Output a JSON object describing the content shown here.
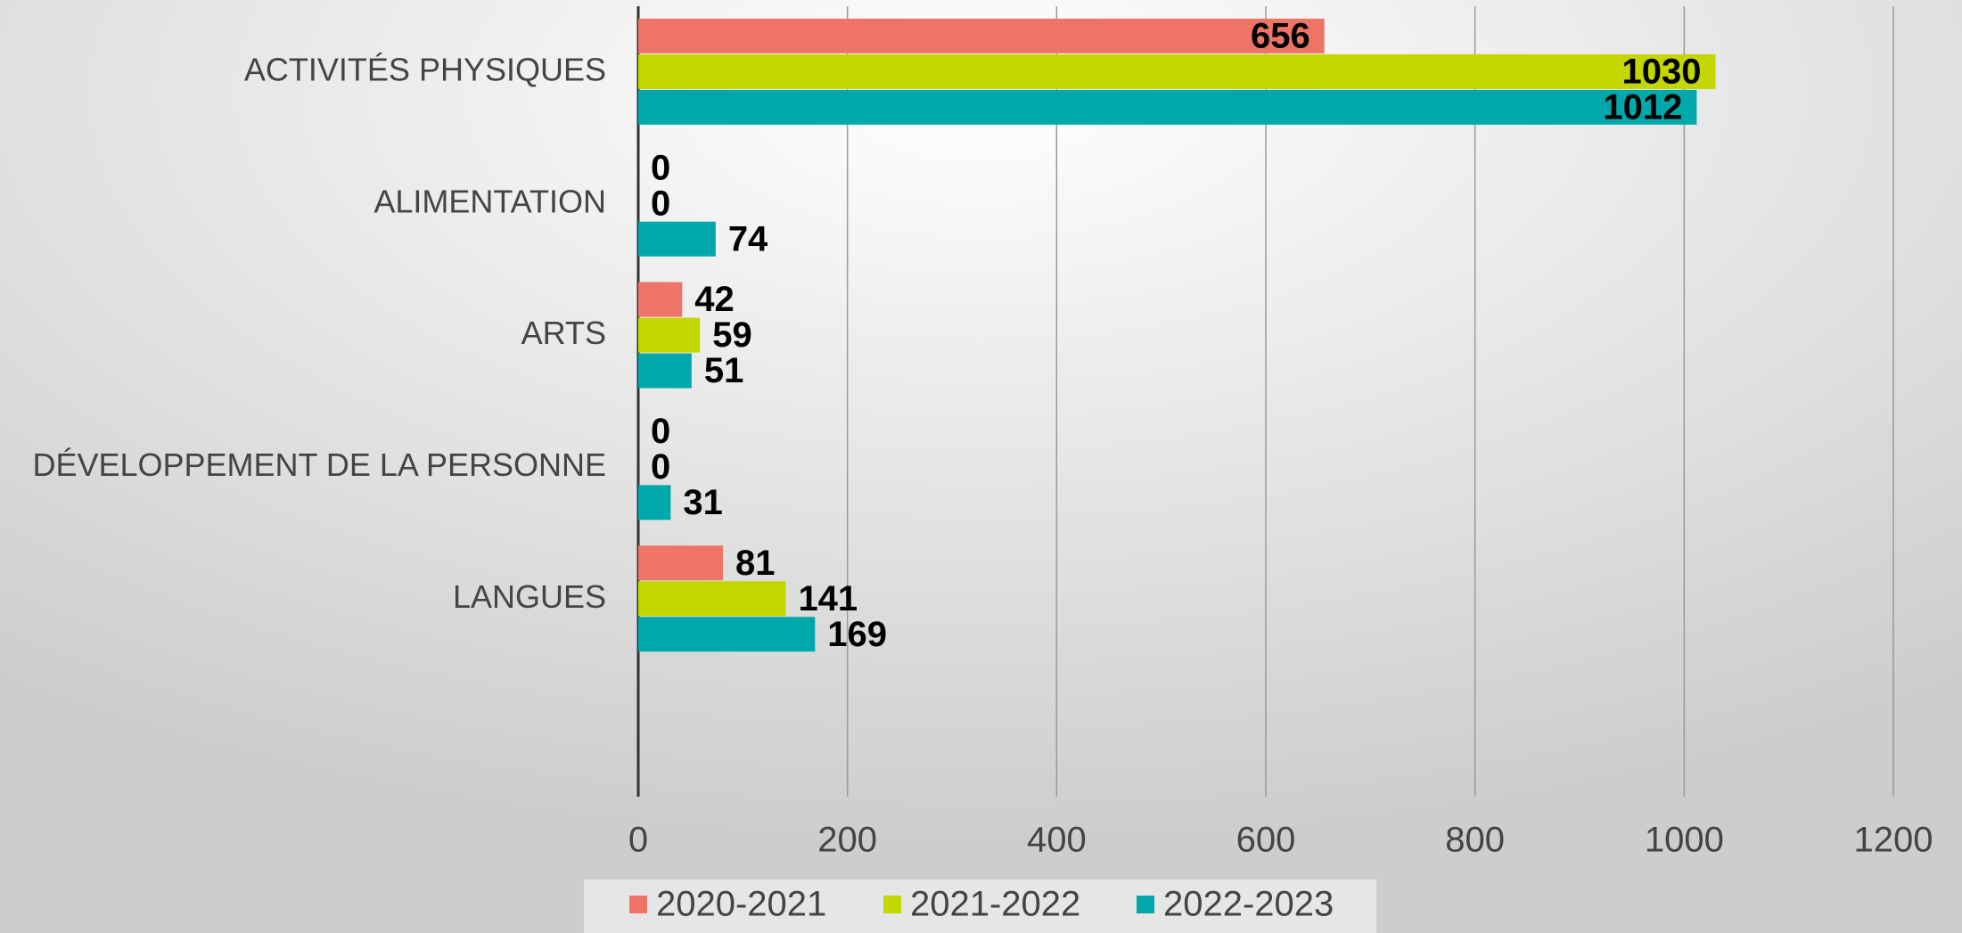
{
  "chart_data": {
    "type": "hbar",
    "categories": [
      "ACTIVITÉS PHYSIQUES",
      "ALIMENTATION",
      "ARTS",
      "DÉVELOPPEMENT DE LA PERSONNE",
      "LANGUES",
      null
    ],
    "series": [
      {
        "name": "2020-2021",
        "color": "#ee7468",
        "values": [
          656,
          0,
          42,
          0,
          81,
          null
        ]
      },
      {
        "name": "2021-2022",
        "color": "#c3d600",
        "values": [
          1030,
          0,
          59,
          0,
          141,
          null
        ]
      },
      {
        "name": "2022-2023",
        "color": "#00a8ab",
        "values": [
          1012,
          74,
          51,
          31,
          169,
          null
        ]
      }
    ],
    "xlim": [
      0,
      1200
    ],
    "xticks": [
      0,
      200,
      400,
      600,
      800,
      1000,
      1200
    ],
    "grid": true,
    "legend": "bottom"
  }
}
